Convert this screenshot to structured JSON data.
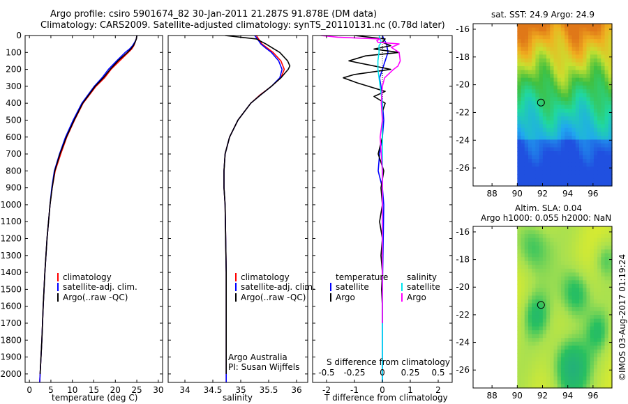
{
  "header": {
    "line1": "Argo profile: csiro 5901674_82 30-Jan-2011 21.287S 91.878E (DM data)",
    "line2": "Climatology: CARS2009. Satellite-adjusted climatology: synTS_20110131.nc (0.78d later)"
  },
  "colors": {
    "climatology": "#ff0000",
    "satellite": "#0000ff",
    "argo": "#000000",
    "salinity_satellite": "#00e5ee",
    "salinity_argo": "#ff00ff"
  },
  "chart_data": [
    {
      "type": "line",
      "id": "temperature",
      "xlabel": "temperature (deg C)",
      "ylabel": "",
      "xlim": [
        -1,
        31
      ],
      "ylim": [
        2050,
        0
      ],
      "xticks": [
        0,
        5,
        10,
        15,
        20,
        25,
        30
      ],
      "yticks": [
        0,
        100,
        200,
        300,
        400,
        500,
        600,
        700,
        800,
        900,
        1000,
        1100,
        1200,
        1300,
        1400,
        1500,
        1600,
        1700,
        1800,
        1900,
        2000
      ],
      "legend": [
        "climatology",
        "satellite-adj. clim.",
        "Argo(..raw -QC)"
      ],
      "series": [
        {
          "name": "climatology",
          "depth": [
            0,
            20,
            40,
            60,
            80,
            100,
            150,
            200,
            250,
            300,
            400,
            500,
            600,
            700,
            800,
            900,
            1000,
            1200,
            1400,
            1600,
            1800,
            2000,
            2050
          ],
          "values": [
            25.0,
            24.9,
            24.6,
            24.3,
            23.8,
            23.0,
            21.0,
            19.0,
            17.5,
            15.5,
            12.5,
            10.5,
            8.7,
            7.3,
            6.0,
            5.3,
            4.8,
            4.1,
            3.6,
            3.2,
            2.9,
            2.5,
            2.4
          ]
        },
        {
          "name": "satellite-adj. clim.",
          "depth": [
            0,
            20,
            40,
            60,
            80,
            100,
            150,
            200,
            250,
            300,
            400,
            500,
            600,
            700,
            800,
            900,
            1000,
            1200,
            1400,
            1600,
            1800,
            2000,
            2050
          ],
          "values": [
            25.0,
            24.9,
            24.5,
            24.0,
            23.3,
            22.3,
            20.3,
            18.4,
            16.9,
            15.1,
            12.2,
            10.2,
            8.4,
            7.0,
            5.8,
            5.2,
            4.8,
            4.1,
            3.6,
            3.2,
            2.9,
            2.5,
            2.4
          ]
        },
        {
          "name": "Argo(..raw -QC)",
          "depth": [
            0,
            20,
            40,
            60,
            80,
            100,
            150,
            200,
            250,
            300,
            400,
            500,
            600,
            700,
            800,
            900,
            1000,
            1200,
            1400,
            1600,
            1800,
            2000
          ],
          "values": [
            25.0,
            24.9,
            24.6,
            24.2,
            23.6,
            22.8,
            20.6,
            18.8,
            17.2,
            15.3,
            12.4,
            10.4,
            8.6,
            7.1,
            5.9,
            5.3,
            4.8,
            4.1,
            3.6,
            3.2,
            2.9,
            2.5
          ]
        }
      ]
    },
    {
      "type": "line",
      "id": "salinity",
      "xlabel": "salinity",
      "xlim": [
        33.7,
        36.2
      ],
      "ylim": [
        2050,
        0
      ],
      "xticks": [
        34,
        34.5,
        35,
        35.5,
        36
      ],
      "tick_labels": [
        "34",
        "34.5",
        "35",
        "35.5",
        "36"
      ],
      "legend": [
        "climatology",
        "satellite-adj. clim.",
        "Argo(..raw -QC)"
      ],
      "annotation": [
        "Argo Australia",
        "PI: Susan Wijffels"
      ],
      "series": [
        {
          "name": "climatology",
          "depth": [
            0,
            20,
            50,
            80,
            100,
            150,
            200,
            250,
            300,
            350,
            400,
            500,
            600,
            700,
            800,
            900,
            1000,
            1200,
            1400,
            1600,
            1800,
            2000,
            2050
          ],
          "values": [
            35.28,
            35.32,
            35.38,
            35.5,
            35.58,
            35.72,
            35.78,
            35.72,
            35.55,
            35.35,
            35.18,
            34.95,
            34.8,
            34.72,
            34.7,
            34.7,
            34.72,
            34.73,
            34.74,
            34.74,
            34.74,
            34.74,
            34.74
          ]
        },
        {
          "name": "satellite-adj. clim.",
          "depth": [
            0,
            20,
            50,
            80,
            100,
            150,
            200,
            250,
            300,
            350,
            400,
            500,
            600,
            700,
            800,
            900,
            1000,
            1200,
            1400,
            1600,
            1800,
            2000,
            2050
          ],
          "values": [
            35.25,
            35.3,
            35.36,
            35.47,
            35.55,
            35.68,
            35.74,
            35.7,
            35.55,
            35.36,
            35.18,
            34.95,
            34.8,
            34.72,
            34.7,
            34.7,
            34.72,
            34.73,
            34.74,
            34.74,
            34.74,
            34.74,
            34.74
          ]
        },
        {
          "name": "Argo(..raw -QC)",
          "depth": [
            0,
            20,
            50,
            80,
            100,
            150,
            180,
            200,
            250,
            300,
            350,
            400,
            500,
            600,
            700,
            800,
            900,
            1000,
            1200,
            1400,
            1600,
            1800,
            2000
          ],
          "values": [
            34.72,
            35.28,
            35.45,
            35.6,
            35.7,
            35.84,
            35.88,
            35.85,
            35.72,
            35.55,
            35.36,
            35.18,
            34.95,
            34.8,
            34.72,
            34.7,
            34.7,
            34.72,
            34.73,
            34.74,
            34.74,
            34.74,
            34.74
          ]
        }
      ]
    },
    {
      "type": "line",
      "id": "difference",
      "xlabel": "T difference from climatology",
      "secondary_xlabel": "S difference from climatology",
      "xlim": [
        -2.5,
        2.5
      ],
      "ylim": [
        2050,
        0
      ],
      "xticks": [
        -2,
        -1,
        0,
        1,
        2
      ],
      "secondary_xticks": [
        -0.5,
        -0.25,
        0,
        0.25,
        0.5
      ],
      "secondary_tick_labels": [
        "-0.5",
        "-0.25",
        "0",
        "0.25",
        "0.5"
      ],
      "legend_headers": [
        "temperature",
        "salinity"
      ],
      "legend": [
        "satellite",
        "Argo",
        "satellite",
        "Argo"
      ],
      "series": [
        {
          "name": "temperature satellite",
          "depth": [
            0,
            20,
            50,
            100,
            150,
            200,
            250,
            300,
            400,
            500,
            600,
            700,
            800,
            900,
            1000,
            1500,
            2000,
            2050
          ],
          "values": [
            0.0,
            0.05,
            0.15,
            0.2,
            0.1,
            0.0,
            -0.1,
            -0.05,
            0.0,
            0.05,
            0.0,
            -0.1,
            -0.15,
            0.0,
            0.05,
            0.0,
            0.0,
            0.0
          ]
        },
        {
          "name": "temperature Argo",
          "depth": [
            0,
            20,
            40,
            60,
            80,
            100,
            120,
            150,
            180,
            200,
            230,
            250,
            280,
            300,
            330,
            360,
            400,
            450,
            500,
            600,
            700,
            800,
            900,
            1000,
            1100,
            1200,
            1300,
            1400,
            1500,
            1600,
            1700
          ],
          "values": [
            -1.0,
            0.1,
            0.0,
            0.3,
            -0.3,
            0.6,
            -0.6,
            -1.2,
            -0.3,
            0.3,
            -1.0,
            -1.4,
            -0.9,
            -0.5,
            0.1,
            -0.3,
            0.1,
            0.0,
            0.0,
            0.0,
            -0.15,
            0.05,
            -0.05,
            0.0,
            -0.1,
            0.0,
            -0.05,
            0.0,
            -0.03,
            0.0,
            0.0
          ]
        },
        {
          "name": "salinity satellite",
          "depth": [
            0,
            20,
            40,
            60,
            80,
            100,
            150,
            200,
            300,
            400,
            500,
            600,
            700,
            800,
            900,
            1000,
            1500,
            2000,
            2050
          ],
          "values": [
            -0.03,
            -0.02,
            -0.01,
            -0.03,
            -0.03,
            -0.03,
            -0.04,
            -0.04,
            -0.02,
            0.0,
            0.0,
            0.0,
            0.0,
            0.0,
            0.0,
            0.0,
            0.0,
            0.0,
            0.0
          ]
        },
        {
          "name": "salinity Argo",
          "depth": [
            0,
            10,
            20,
            30,
            40,
            50,
            70,
            100,
            150,
            180,
            200,
            250,
            300,
            400,
            500,
            600,
            700,
            800,
            1000,
            1500,
            1700
          ],
          "values": [
            -0.55,
            -0.4,
            -0.02,
            -0.05,
            -0.04,
            0.15,
            0.08,
            0.15,
            0.16,
            0.14,
            0.1,
            0.02,
            0.0,
            -0.01,
            0.0,
            -0.02,
            -0.01,
            0.0,
            0.0,
            0.0,
            0.0
          ]
        }
      ]
    },
    {
      "type": "heatmap",
      "id": "sst_map",
      "title": "sat. SST: 24.9  Argo: 24.9",
      "xlim": [
        86.5,
        97.5
      ],
      "ylim": [
        -27.3,
        -15.6
      ],
      "xticks": [
        88,
        90,
        92,
        94,
        96
      ],
      "yticks": [
        -16,
        -18,
        -20,
        -22,
        -24,
        -26
      ],
      "data_extent_x": [
        90,
        97.5
      ],
      "marker": {
        "lon": 91.878,
        "lat": -21.287
      }
    },
    {
      "type": "heatmap",
      "id": "sla_map",
      "title_line1": "Altim. SLA: 0.04",
      "title_line2": "Argo h1000: 0.055 h2000: NaN",
      "xlim": [
        86.5,
        97.5
      ],
      "ylim": [
        -27.3,
        -15.6
      ],
      "xticks": [
        88,
        90,
        92,
        94,
        96
      ],
      "yticks": [
        -16,
        -18,
        -20,
        -22,
        -24,
        -26
      ],
      "data_extent_x": [
        90,
        97.5
      ],
      "marker": {
        "lon": 91.878,
        "lat": -21.287
      }
    }
  ],
  "footer": {
    "stamp": "©IMOS 03-Aug-2017 01:19:24"
  }
}
